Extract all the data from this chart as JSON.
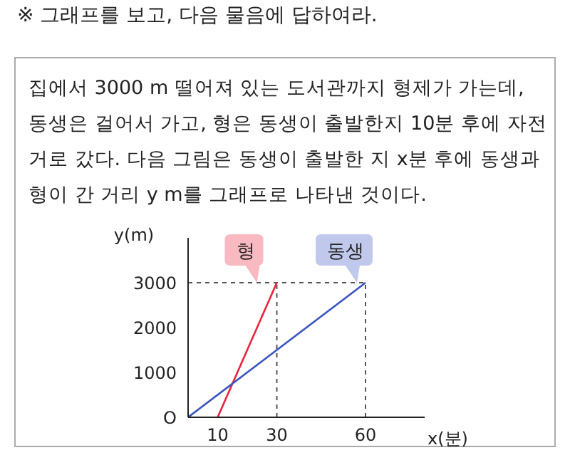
{
  "chart_data": {
    "type": "line",
    "title": "※ 그래프를 보고, 다음 물음에 답하여라.",
    "annotations": [
      "집에서 3000 m 떨어져 있는 도서관까지 형제가 가는데, 동생은 걸어서 가고, 형은 동생이 출발한지 10분 후에 자전거로 갔다. 다음 그림은 동생이 출발한 지 x분 후에 동생과 형이 간 거리 y m를 그래프로 나타낸 것이다."
    ],
    "xlabel": "x(분)",
    "ylabel": "y(m)",
    "series": [
      {
        "name": "형",
        "color": "#e8243c",
        "x": [
          10,
          30
        ],
        "values": [
          0,
          3000
        ]
      },
      {
        "name": "동생",
        "color": "#3a55c0",
        "x": [
          0,
          60
        ],
        "values": [
          0,
          3000
        ]
      }
    ],
    "xlim": [
      0,
      80
    ],
    "ylim": [
      0,
      4000
    ],
    "xticks": [
      10,
      30,
      60
    ],
    "yticks": [
      {
        "value": 0,
        "label": "O"
      },
      1000,
      2000,
      3000
    ],
    "ref_lines": [
      {
        "axis": "y",
        "value": 3000,
        "color": "#555555",
        "line_style": "dashed"
      },
      {
        "axis": "x",
        "value": 30,
        "color": "#555555",
        "line_style": "dashed"
      },
      {
        "axis": "x",
        "value": 60,
        "color": "#555555",
        "line_style": "dashed"
      }
    ],
    "grid": false,
    "legend": false,
    "marker": "none",
    "line_style": "solid"
  }
}
